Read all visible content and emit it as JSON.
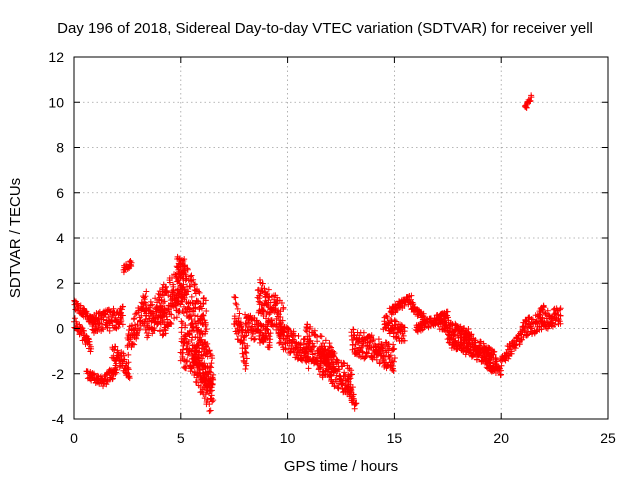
{
  "chart_data": {
    "type": "scatter",
    "title": "Day 196 of 2018, Sidereal Day-to-day VTEC variation (SDTVAR) for receiver yell",
    "xlabel": "GPS time / hours",
    "ylabel": "SDTVAR / TECUs",
    "xlim": [
      0,
      25
    ],
    "ylim": [
      -4,
      12
    ],
    "x_ticks": [
      0,
      5,
      10,
      15,
      20,
      25
    ],
    "y_ticks": [
      -4,
      -2,
      0,
      2,
      4,
      6,
      8,
      10,
      12
    ],
    "x_tick_labels": [
      "0",
      "5",
      "10",
      "15",
      "20",
      "25"
    ],
    "y_tick_labels": [
      "-4",
      "-2",
      "0",
      "2",
      "4",
      "6",
      "8",
      "10",
      "12"
    ],
    "grid": true,
    "marker": "+",
    "color": "#ff0000",
    "series": [
      {
        "name": "SDTVAR",
        "segments": [
          {
            "x0": 0.0,
            "x1": 0.9,
            "y0": 1.1,
            "y1": 0.3,
            "spread": 0.2
          },
          {
            "x0": 0.0,
            "x1": 0.8,
            "y0": 0.3,
            "y1": -0.8,
            "spread": 0.25
          },
          {
            "x0": 0.6,
            "x1": 1.4,
            "y0": -2.0,
            "y1": -2.4,
            "spread": 0.2
          },
          {
            "x0": 1.4,
            "x1": 2.0,
            "y0": -2.3,
            "y1": -1.8,
            "spread": 0.25
          },
          {
            "x0": 0.8,
            "x1": 2.3,
            "y0": 0.2,
            "y1": 0.5,
            "spread": 0.5
          },
          {
            "x0": 2.3,
            "x1": 2.7,
            "y0": 2.6,
            "y1": 2.9,
            "spread": 0.15
          },
          {
            "x0": 1.8,
            "x1": 2.6,
            "y0": -1.0,
            "y1": -1.8,
            "spread": 0.4
          },
          {
            "x0": 2.5,
            "x1": 3.4,
            "y0": -0.8,
            "y1": 1.2,
            "spread": 0.6
          },
          {
            "x0": 3.3,
            "x1": 4.3,
            "y0": 0.2,
            "y1": 1.3,
            "spread": 0.8
          },
          {
            "x0": 4.0,
            "x1": 5.2,
            "y0": 0.5,
            "y1": 2.1,
            "spread": 1.1
          },
          {
            "x0": 4.8,
            "x1": 6.2,
            "y0": 2.3,
            "y1": 0.0,
            "spread": 1.2
          },
          {
            "x0": 5.0,
            "x1": 6.5,
            "y0": -0.6,
            "y1": -1.8,
            "spread": 1.0
          },
          {
            "x0": 5.6,
            "x1": 6.5,
            "y0": -1.4,
            "y1": -3.2,
            "spread": 0.8
          },
          {
            "x0": 7.5,
            "x1": 8.1,
            "y0": 0.9,
            "y1": -1.5,
            "spread": 0.8
          },
          {
            "x0": 8.0,
            "x1": 9.2,
            "y0": 0.2,
            "y1": -0.4,
            "spread": 0.5
          },
          {
            "x0": 8.6,
            "x1": 9.8,
            "y0": 1.5,
            "y1": 0.3,
            "spread": 0.8
          },
          {
            "x0": 9.6,
            "x1": 11.0,
            "y0": -0.2,
            "y1": -1.2,
            "spread": 0.6
          },
          {
            "x0": 10.8,
            "x1": 12.2,
            "y0": -0.5,
            "y1": -1.6,
            "spread": 0.8
          },
          {
            "x0": 11.5,
            "x1": 13.0,
            "y0": -1.4,
            "y1": -2.4,
            "spread": 0.7
          },
          {
            "x0": 12.8,
            "x1": 13.2,
            "y0": -2.4,
            "y1": -3.4,
            "spread": 0.4
          },
          {
            "x0": 13.0,
            "x1": 15.0,
            "y0": -0.5,
            "y1": -1.3,
            "spread": 0.6
          },
          {
            "x0": 14.5,
            "x1": 15.5,
            "y0": 0.3,
            "y1": -0.3,
            "spread": 0.4
          },
          {
            "x0": 14.8,
            "x1": 15.8,
            "y0": 0.8,
            "y1": 1.3,
            "spread": 0.2
          },
          {
            "x0": 15.8,
            "x1": 16.4,
            "y0": 1.0,
            "y1": 0.4,
            "spread": 0.2
          },
          {
            "x0": 16.0,
            "x1": 17.5,
            "y0": 0.0,
            "y1": 0.6,
            "spread": 0.2
          },
          {
            "x0": 17.0,
            "x1": 18.5,
            "y0": 0.3,
            "y1": -0.3,
            "spread": 0.3
          },
          {
            "x0": 18.3,
            "x1": 19.8,
            "y0": -0.3,
            "y1": -1.4,
            "spread": 0.3
          },
          {
            "x0": 17.5,
            "x1": 19.5,
            "y0": -0.5,
            "y1": -1.4,
            "spread": 0.3
          },
          {
            "x0": 19.3,
            "x1": 20.0,
            "y0": -1.6,
            "y1": -1.9,
            "spread": 0.2
          },
          {
            "x0": 20.0,
            "x1": 21.0,
            "y0": -1.4,
            "y1": -0.3,
            "spread": 0.3
          },
          {
            "x0": 21.0,
            "x1": 22.8,
            "y0": 0.0,
            "y1": 0.6,
            "spread": 0.4
          },
          {
            "x0": 21.8,
            "x1": 22.0,
            "y0": 0.8,
            "y1": 1.0,
            "spread": 0.1
          },
          {
            "x0": 21.1,
            "x1": 21.4,
            "y0": 9.7,
            "y1": 10.2,
            "spread": 0.15
          }
        ]
      }
    ]
  }
}
